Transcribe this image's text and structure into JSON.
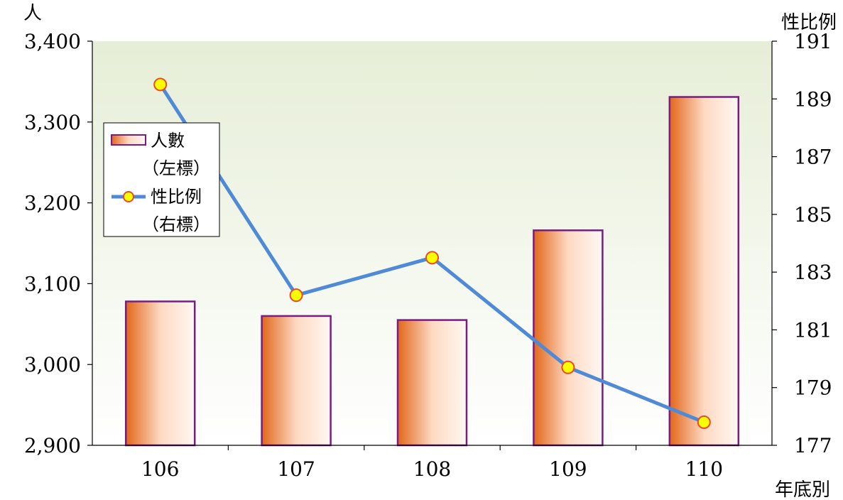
{
  "chart_data": {
    "type": "bar",
    "categories": [
      "106",
      "107",
      "108",
      "109",
      "110"
    ],
    "y_left_unit": "人",
    "y_right_unit": "性比例",
    "x_unit": "年底別",
    "y_left_lim": [
      2900,
      3400
    ],
    "y_left_ticks": [
      "3,400",
      "3,300",
      "3,200",
      "3,100",
      "3,000",
      "2,900"
    ],
    "y_left_tick_values": [
      3400,
      3300,
      3200,
      3100,
      3000,
      2900
    ],
    "y_right_lim": [
      177,
      191
    ],
    "y_right_ticks": [
      "191",
      "189",
      "187",
      "185",
      "183",
      "181",
      "179",
      "177"
    ],
    "y_right_tick_values": [
      191,
      189,
      187,
      185,
      183,
      181,
      179,
      177
    ],
    "series": [
      {
        "name": "人數",
        "axis": "left",
        "kind": "bar",
        "values": [
          3078,
          3060,
          3055,
          3166,
          3331
        ]
      },
      {
        "name": "性比例",
        "axis": "right",
        "kind": "line",
        "values": [
          189.5,
          182.2,
          183.5,
          179.7,
          177.8
        ]
      }
    ],
    "legend": [
      {
        "label": "人數",
        "sub": "（左標）"
      },
      {
        "label": "性比例",
        "sub": "（右標）"
      }
    ],
    "legend_position": "left",
    "colors": {
      "bar_border": "#7b1c82",
      "bar_dark": "#e2671a",
      "bar_light": "#fff8f3",
      "line": "#4f8ad6",
      "marker_fill": "#ffff00",
      "marker_stroke": "#e84a2a",
      "plot_bg_top": "#e6eed7",
      "plot_bg_bottom": "#ffffff"
    }
  }
}
